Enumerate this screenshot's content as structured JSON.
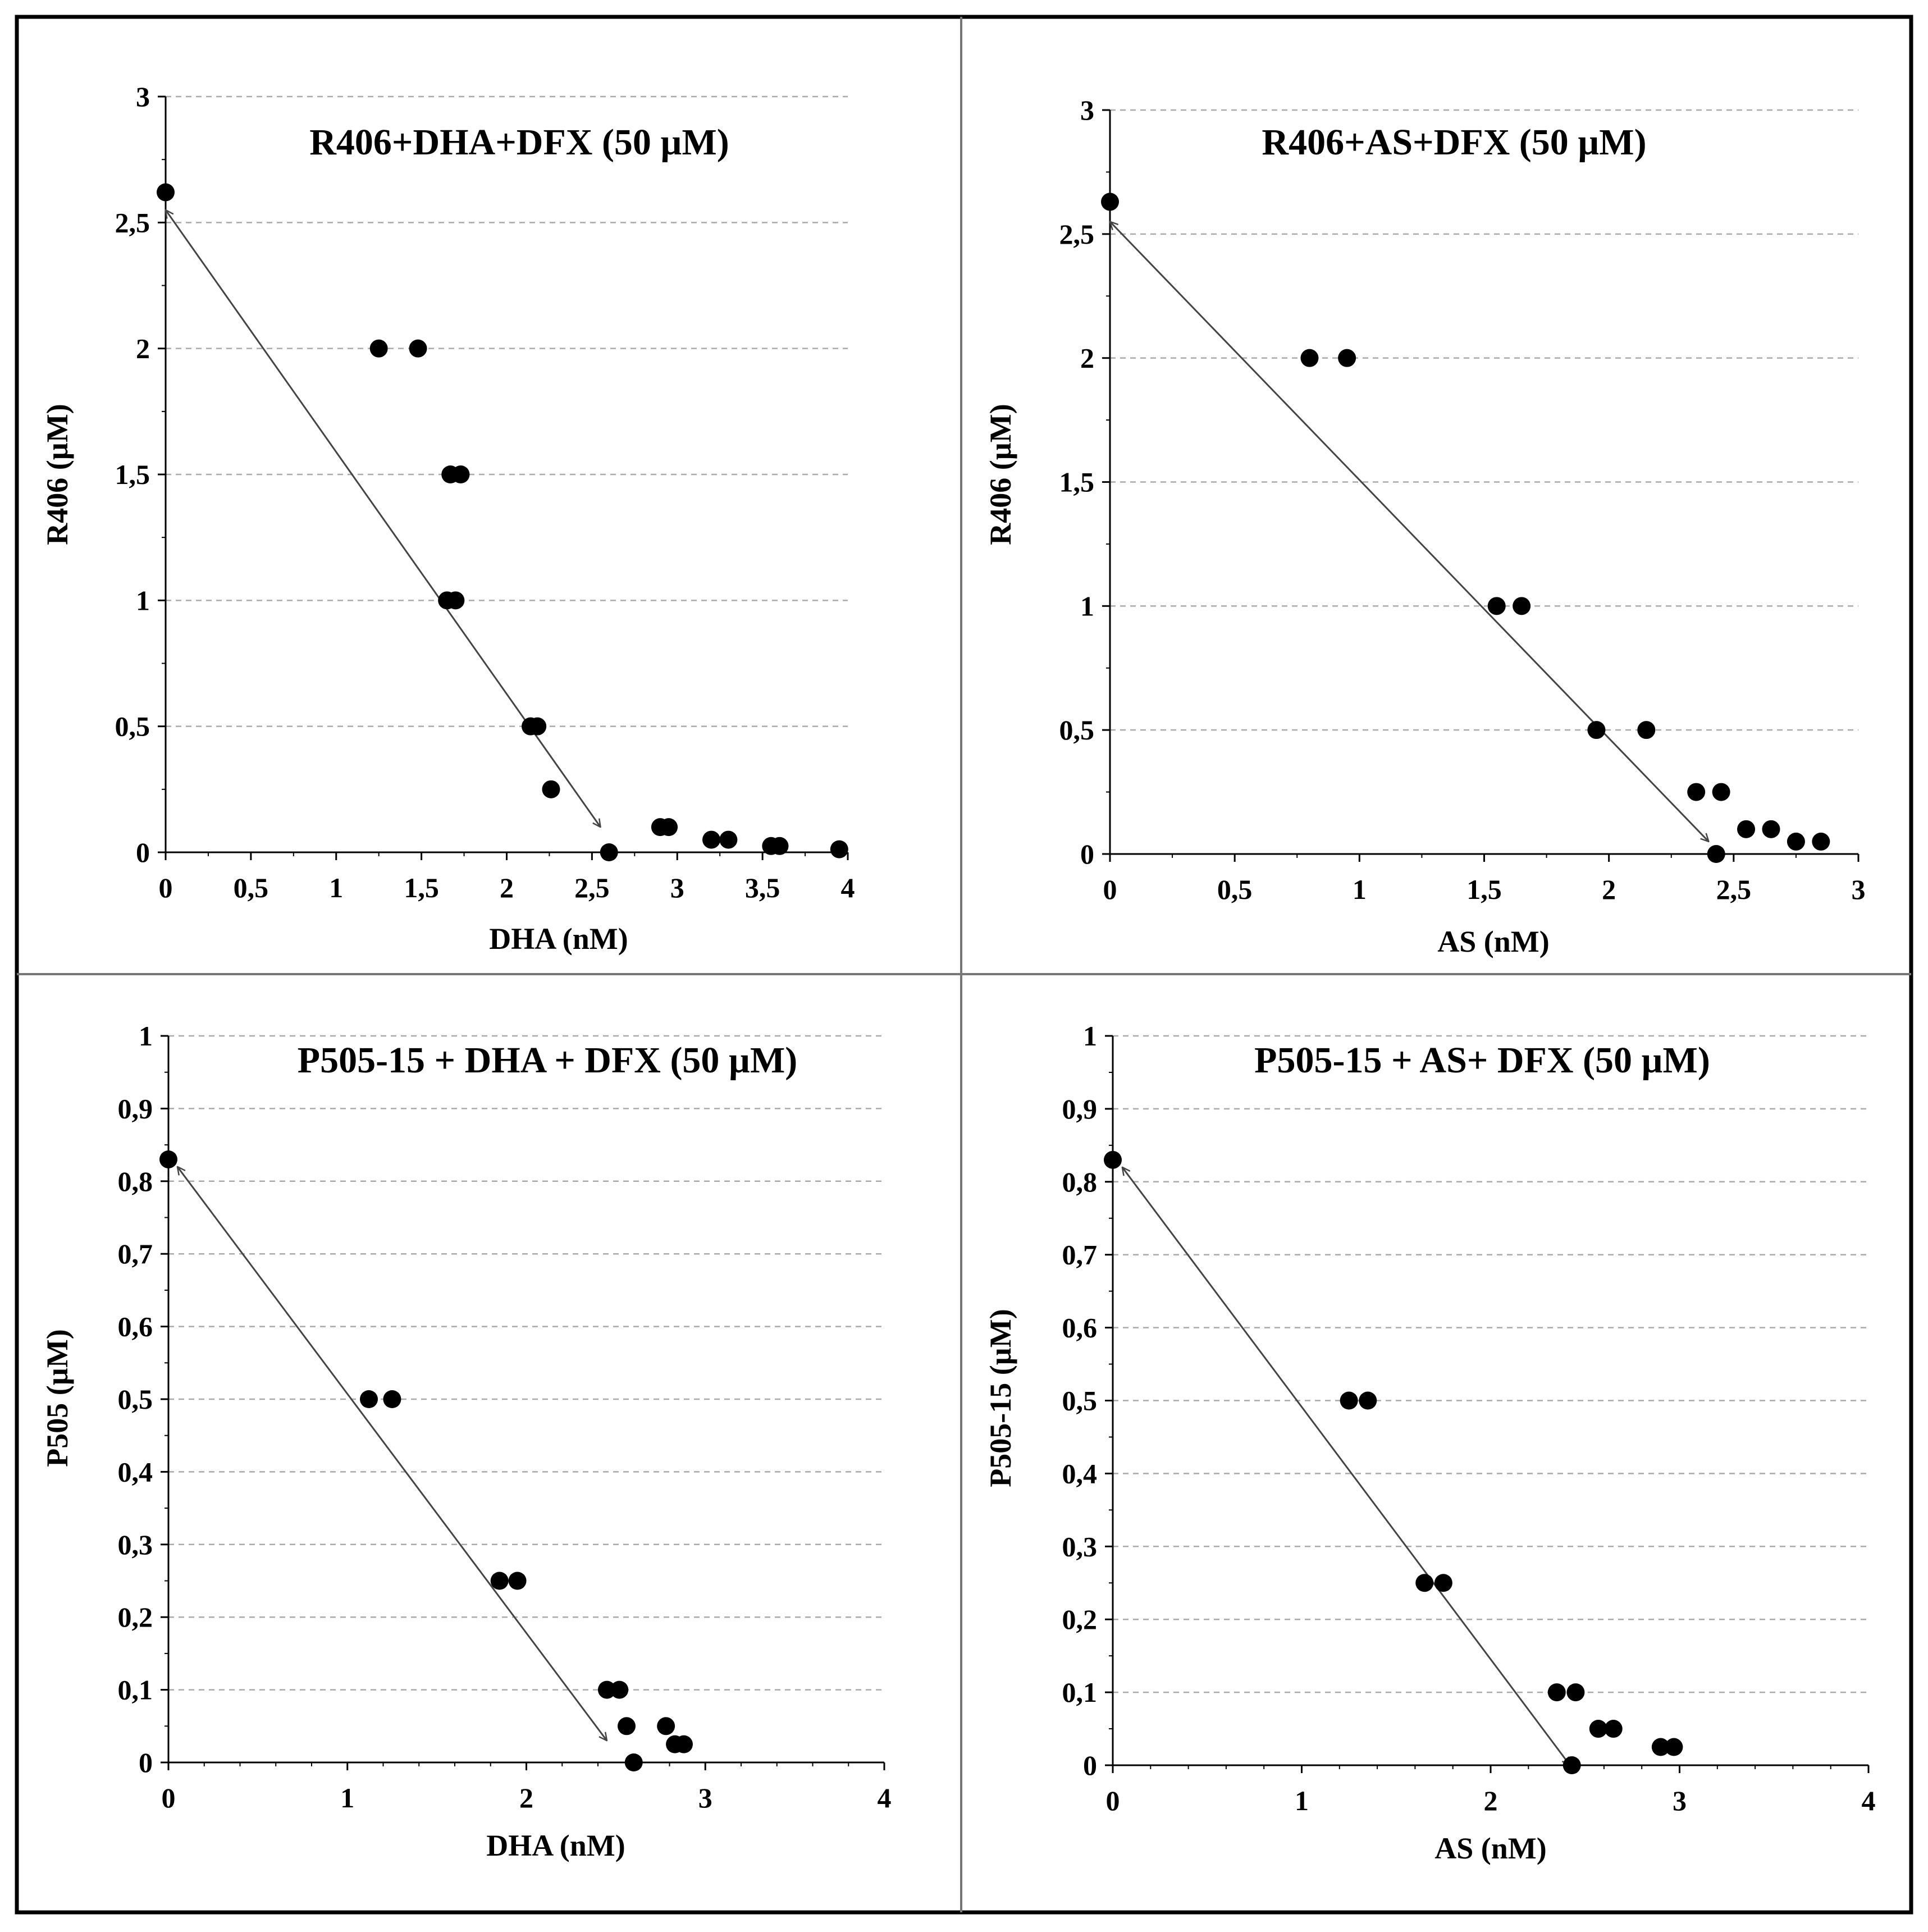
{
  "chart_data": [
    {
      "type": "scatter",
      "title": "R406+DHA+DFX (50 µM)",
      "xlabel": "DHA (nM)",
      "ylabel": "R406 (µM)",
      "xlim": [
        0,
        4
      ],
      "ylim": [
        0,
        3
      ],
      "xticks": [
        0,
        0.5,
        1,
        1.5,
        2,
        2.5,
        3,
        3.5,
        4
      ],
      "yticks": [
        0,
        0.5,
        1,
        1.5,
        2,
        2.5,
        3
      ],
      "xtick_labels": [
        "0",
        "0,5",
        "1",
        "1,5",
        "2",
        "2,5",
        "3",
        "3,5",
        "4"
      ],
      "ytick_labels": [
        "0",
        "0,5",
        "1",
        "1,5",
        "2",
        "2,5",
        "3"
      ],
      "grid": "horizontal dashed",
      "points": [
        [
          0,
          2.62
        ],
        [
          1.25,
          2.0
        ],
        [
          1.48,
          2.0
        ],
        [
          1.67,
          1.5
        ],
        [
          1.73,
          1.5
        ],
        [
          1.65,
          1.0
        ],
        [
          1.7,
          1.0
        ],
        [
          2.14,
          0.5
        ],
        [
          2.18,
          0.5
        ],
        [
          2.26,
          0.25
        ],
        [
          2.6,
          0.0
        ],
        [
          2.9,
          0.1
        ],
        [
          2.95,
          0.1
        ],
        [
          3.2,
          0.05
        ],
        [
          3.3,
          0.05
        ],
        [
          3.55,
          0.025
        ],
        [
          3.6,
          0.025
        ],
        [
          3.95,
          0.012
        ]
      ],
      "annotation": "double-headed arrow",
      "isobole": [
        [
          0,
          2.55
        ],
        [
          2.55,
          0.1
        ]
      ]
    },
    {
      "type": "scatter",
      "title": "R406+AS+DFX (50 µM)",
      "xlabel": "AS (nM)",
      "ylabel": "R406 (µM)",
      "xlim": [
        0,
        3
      ],
      "ylim": [
        0,
        3
      ],
      "xticks": [
        0,
        0.5,
        1,
        1.5,
        2,
        2.5,
        3
      ],
      "yticks": [
        0,
        0.5,
        1,
        1.5,
        2,
        2.5,
        3
      ],
      "xtick_labels": [
        "0",
        "0,5",
        "1",
        "1,5",
        "2",
        "2,5",
        "3"
      ],
      "ytick_labels": [
        "0",
        "0,5",
        "1",
        "1,5",
        "2",
        "2,5",
        "3"
      ],
      "grid": "horizontal dashed",
      "points": [
        [
          0,
          2.63
        ],
        [
          0.8,
          2.0
        ],
        [
          0.95,
          2.0
        ],
        [
          1.55,
          1.0
        ],
        [
          1.65,
          1.0
        ],
        [
          1.95,
          0.5
        ],
        [
          2.15,
          0.5
        ],
        [
          2.35,
          0.25
        ],
        [
          2.45,
          0.25
        ],
        [
          2.55,
          0.1
        ],
        [
          2.65,
          0.1
        ],
        [
          2.75,
          0.05
        ],
        [
          2.85,
          0.05
        ],
        [
          2.43,
          0.0
        ]
      ],
      "annotation": "double-headed arrow",
      "isobole": [
        [
          0,
          2.55
        ],
        [
          2.4,
          0.05
        ]
      ]
    },
    {
      "type": "scatter",
      "title": "P505-15 + DHA + DFX (50 µM)",
      "xlabel": "DHA (nM)",
      "ylabel": "P505 (µM)",
      "xlim": [
        0,
        4
      ],
      "ylim": [
        0,
        1
      ],
      "xticks": [
        0,
        1,
        2,
        3,
        4
      ],
      "yticks": [
        0,
        0.1,
        0.2,
        0.3,
        0.4,
        0.5,
        0.6,
        0.7,
        0.8,
        0.9,
        1
      ],
      "xtick_labels": [
        "0",
        "1",
        "2",
        "3",
        "4"
      ],
      "ytick_labels": [
        "0",
        "0,1",
        "0,2",
        "0,3",
        "0,4",
        "0,5",
        "0,6",
        "0,7",
        "0,8",
        "0,9",
        "1"
      ],
      "grid": "horizontal dashed",
      "points": [
        [
          0,
          0.83
        ],
        [
          1.12,
          0.5
        ],
        [
          1.25,
          0.5
        ],
        [
          1.85,
          0.25
        ],
        [
          1.95,
          0.25
        ],
        [
          2.45,
          0.1
        ],
        [
          2.52,
          0.1
        ],
        [
          2.56,
          0.05
        ],
        [
          2.6,
          0.0
        ],
        [
          2.78,
          0.05
        ],
        [
          2.83,
          0.025
        ],
        [
          2.88,
          0.025
        ]
      ],
      "annotation": "double-headed arrow",
      "isobole": [
        [
          0.05,
          0.82
        ],
        [
          2.45,
          0.03
        ]
      ]
    },
    {
      "type": "scatter",
      "title": "P505-15 + AS+ DFX (50 µM)",
      "xlabel": "AS (nM)",
      "ylabel": "P505-15 (µM)",
      "xlim": [
        0,
        4
      ],
      "ylim": [
        0,
        1
      ],
      "xticks": [
        0,
        1,
        2,
        3,
        4
      ],
      "yticks": [
        0,
        0.1,
        0.2,
        0.3,
        0.4,
        0.5,
        0.6,
        0.7,
        0.8,
        0.9,
        1
      ],
      "xtick_labels": [
        "0",
        "1",
        "2",
        "3",
        "4"
      ],
      "ytick_labels": [
        "0",
        "0,1",
        "0,2",
        "0,3",
        "0,4",
        "0,5",
        "0,6",
        "0,7",
        "0,8",
        "0,9",
        "1"
      ],
      "grid": "horizontal dashed",
      "points": [
        [
          0,
          0.83
        ],
        [
          1.25,
          0.5
        ],
        [
          1.35,
          0.5
        ],
        [
          1.65,
          0.25
        ],
        [
          1.75,
          0.25
        ],
        [
          2.35,
          0.1
        ],
        [
          2.45,
          0.1
        ],
        [
          2.43,
          0.0
        ],
        [
          2.57,
          0.05
        ],
        [
          2.65,
          0.05
        ],
        [
          2.9,
          0.025
        ],
        [
          2.97,
          0.025
        ]
      ],
      "annotation": "double-headed arrow",
      "isobole": [
        [
          0.05,
          0.82
        ],
        [
          2.42,
          0.0
        ]
      ]
    }
  ]
}
